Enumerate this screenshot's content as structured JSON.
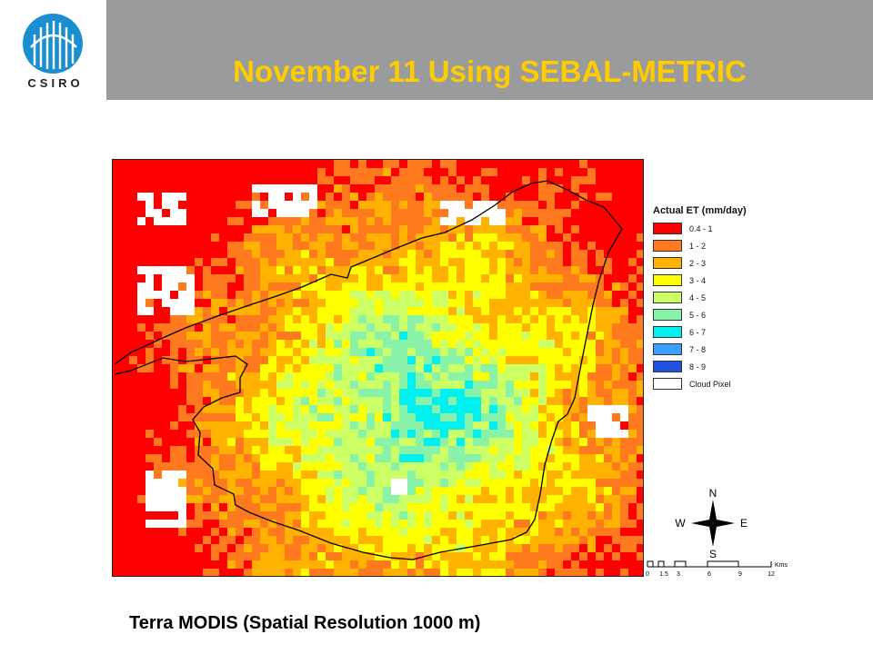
{
  "header": {
    "logo_text": "CSIRO",
    "title": "November 11 Using SEBAL-METRIC"
  },
  "map": {
    "legend": {
      "title": "Actual ET (mm/day)",
      "items": [
        {
          "label": "0.4 - 1",
          "color": "#ff0000"
        },
        {
          "label": "1 - 2",
          "color": "#ff7a1f"
        },
        {
          "label": "2 - 3",
          "color": "#ffb300"
        },
        {
          "label": "3 - 4",
          "color": "#ffff00"
        },
        {
          "label": "4 - 5",
          "color": "#ccff66"
        },
        {
          "label": "5 - 6",
          "color": "#88f2a8"
        },
        {
          "label": "6 - 7",
          "color": "#00f0f0"
        },
        {
          "label": "7 - 8",
          "color": "#3aa0ff"
        },
        {
          "label": "8 - 9",
          "color": "#2050e0"
        },
        {
          "label": "Cloud Pixel",
          "color": "#ffffff"
        }
      ]
    },
    "compass": {
      "n": "N",
      "s": "S",
      "e": "E",
      "w": "W"
    },
    "scale": {
      "ticks": [
        "0",
        "1.5",
        "3",
        "6",
        "9",
        "12"
      ],
      "unit": "Kms"
    }
  },
  "caption": "Terra MODIS (Spatial Resolution 1000 m)"
}
